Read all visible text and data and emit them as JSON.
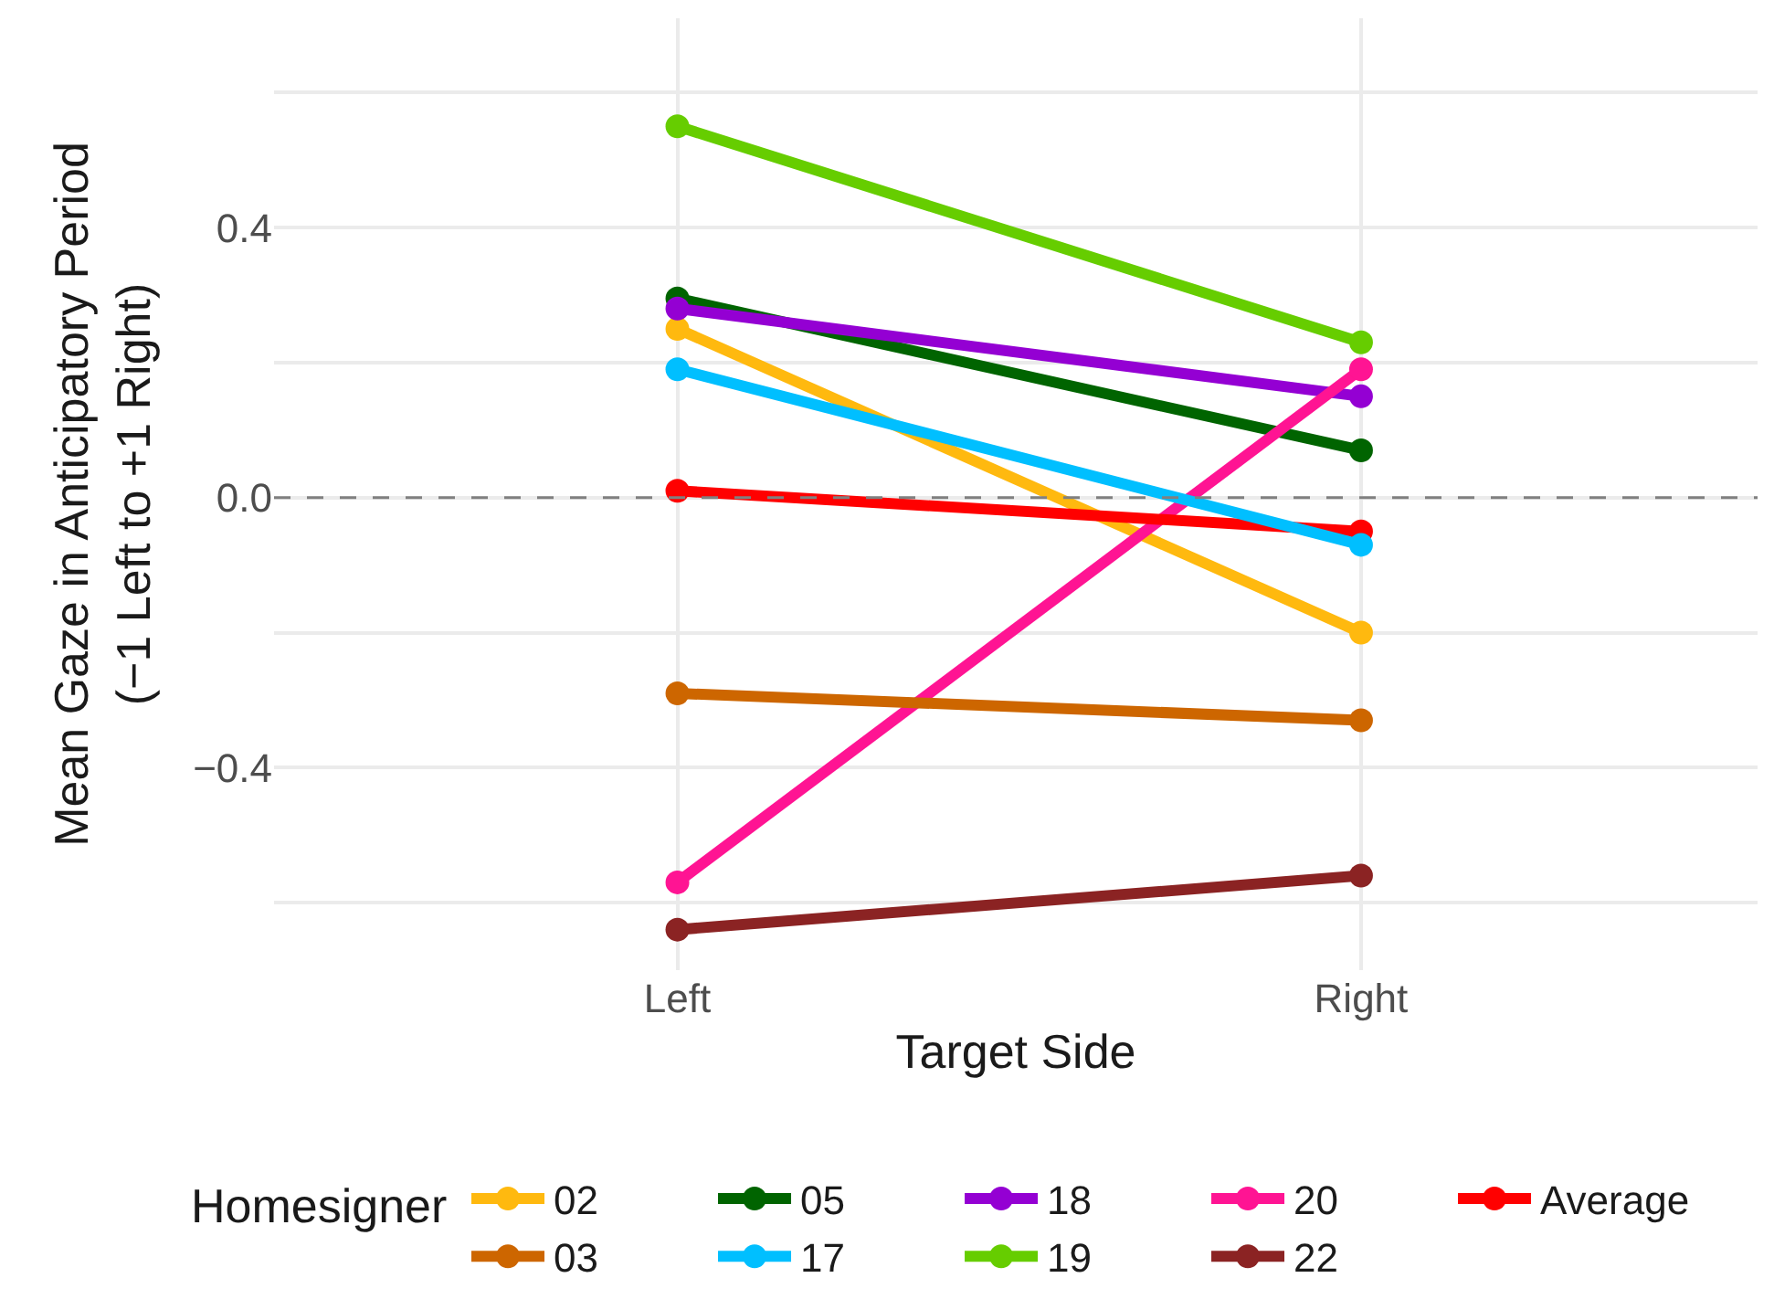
{
  "chart_data": {
    "type": "line",
    "xlabel": "Target Side",
    "ylabel": "Mean Gaze in Anticipatory Period\n(−1 Left to +1 Right)",
    "legend_title": "Homesigner",
    "categories": [
      "Left",
      "Right"
    ],
    "series": [
      {
        "name": "02",
        "color": "#ffb90f",
        "values": [
          0.25,
          -0.2
        ]
      },
      {
        "name": "05",
        "color": "#006400",
        "values": [
          0.295,
          0.07
        ]
      },
      {
        "name": "18",
        "color": "#9400d3",
        "values": [
          0.28,
          0.15
        ]
      },
      {
        "name": "20",
        "color": "#ff1493",
        "values": [
          -0.57,
          0.19
        ]
      },
      {
        "name": "Average",
        "color": "#ff0000",
        "values": [
          0.01,
          -0.05
        ]
      },
      {
        "name": "03",
        "color": "#cd6600",
        "values": [
          -0.29,
          -0.33
        ]
      },
      {
        "name": "17",
        "color": "#00bfff",
        "values": [
          0.19,
          -0.07
        ]
      },
      {
        "name": "19",
        "color": "#66cd00",
        "values": [
          0.55,
          0.23
        ]
      },
      {
        "name": "22",
        "color": "#8b2323",
        "values": [
          -0.64,
          -0.56
        ]
      }
    ],
    "ylim": [
      -0.7,
      0.71
    ],
    "yticks": [
      {
        "value": -0.6,
        "label": null
      },
      {
        "value": -0.4,
        "label": "−0.4"
      },
      {
        "value": -0.2,
        "label": null
      },
      {
        "value": 0,
        "label": "0.0"
      },
      {
        "value": 0.2,
        "label": null
      },
      0.4,
      {
        "value": 0.6,
        "label": null
      }
    ],
    "ref_lines": [
      {
        "axis": "y",
        "value": 0,
        "color": "#808080",
        "line_style": "dashed"
      }
    ],
    "grid": true,
    "legend": "bottom",
    "marker": "circle",
    "line_style": "solid"
  }
}
